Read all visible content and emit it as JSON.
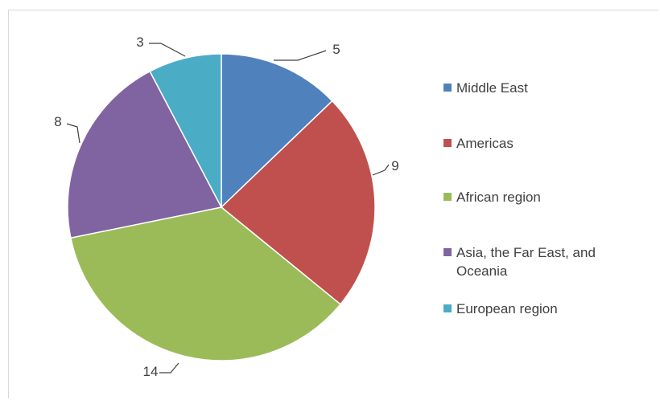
{
  "chart_data": {
    "type": "pie",
    "title": "",
    "start": "12 o'clock, clockwise",
    "slices": [
      {
        "label": "Middle East",
        "value": 5,
        "color": "#4f81bd"
      },
      {
        "label": "Americas",
        "value": 9,
        "color": "#c0504d"
      },
      {
        "label": "African region",
        "value": 14,
        "color": "#9bbb59"
      },
      {
        "label": "Asia, the Far East, and Oceania",
        "value": 8,
        "color": "#8064a2"
      },
      {
        "label": "European region",
        "value": 3,
        "color": "#4bacc6"
      }
    ],
    "data_labels": [
      "5",
      "9",
      "14",
      "8",
      "3"
    ],
    "legend_position": "right"
  }
}
